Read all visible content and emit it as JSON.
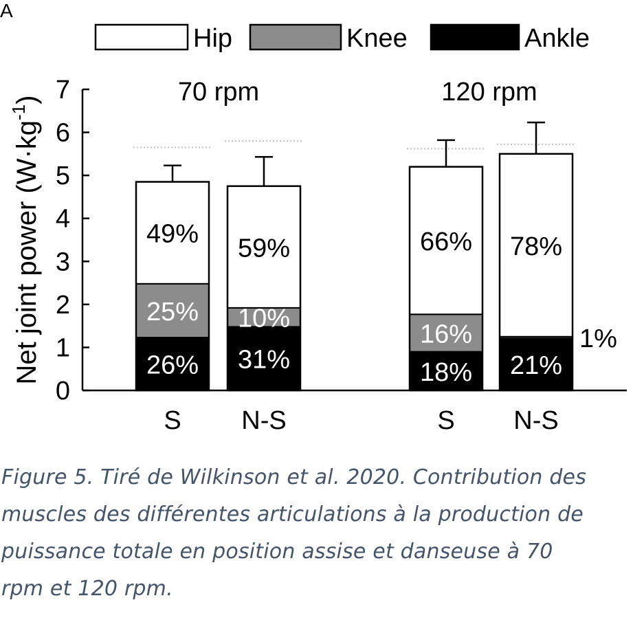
{
  "chart_data": {
    "type": "bar",
    "stacked": true,
    "panel_label": "A",
    "ylabel": "Net joint power (W·kg",
    "ylabel_sup": "-1",
    "ylabel_close": ")",
    "ylim": [
      0,
      7
    ],
    "yticks": [
      0,
      1,
      2,
      3,
      4,
      5,
      6,
      7
    ],
    "legend_position": "top",
    "legend": [
      {
        "name": "Hip",
        "color": "#ffffff"
      },
      {
        "name": "Knee",
        "color": "#8c8c8c"
      },
      {
        "name": "Ankle",
        "color": "#000000"
      }
    ],
    "groups": [
      {
        "title": "70 rpm",
        "bars": [
          {
            "label": "S",
            "total": 4.85,
            "error": 0.38,
            "ref_line": 5.65,
            "segments": [
              {
                "joint": "Ankle",
                "value": 1.23,
                "label": "26%"
              },
              {
                "joint": "Knee",
                "value": 1.25,
                "label": "25%"
              },
              {
                "joint": "Hip",
                "value": 2.37,
                "label": "49%"
              }
            ]
          },
          {
            "label": "N-S",
            "total": 4.75,
            "error": 0.68,
            "ref_line": 5.8,
            "segments": [
              {
                "joint": "Ankle",
                "value": 1.48,
                "label": "31%"
              },
              {
                "joint": "Knee",
                "value": 0.44,
                "label": "10%"
              },
              {
                "joint": "Hip",
                "value": 2.83,
                "label": "59%"
              }
            ]
          }
        ]
      },
      {
        "title": "120 rpm",
        "bars": [
          {
            "label": "S",
            "total": 5.2,
            "error": 0.62,
            "ref_line": 5.62,
            "segments": [
              {
                "joint": "Ankle",
                "value": 0.9,
                "label": "18%"
              },
              {
                "joint": "Knee",
                "value": 0.87,
                "label": "16%"
              },
              {
                "joint": "Hip",
                "value": 3.43,
                "label": "66%"
              }
            ]
          },
          {
            "label": "N-S",
            "total": 5.5,
            "error": 0.73,
            "ref_line": 5.72,
            "segments": [
              {
                "joint": "Ankle",
                "value": 1.21,
                "label": "21%"
              },
              {
                "joint": "Knee",
                "value": 0.04,
                "label": "1%"
              },
              {
                "joint": "Hip",
                "value": 4.25,
                "label": "78%"
              }
            ]
          }
        ]
      }
    ]
  },
  "caption": {
    "lines": [
      "Figure 5. Tiré de Wilkinson et al. 2020. Contribution des",
      "muscles des différentes articulations à la production de",
      "puissance totale en position assise et danseuse à 70",
      "rpm et 120 rpm."
    ]
  }
}
